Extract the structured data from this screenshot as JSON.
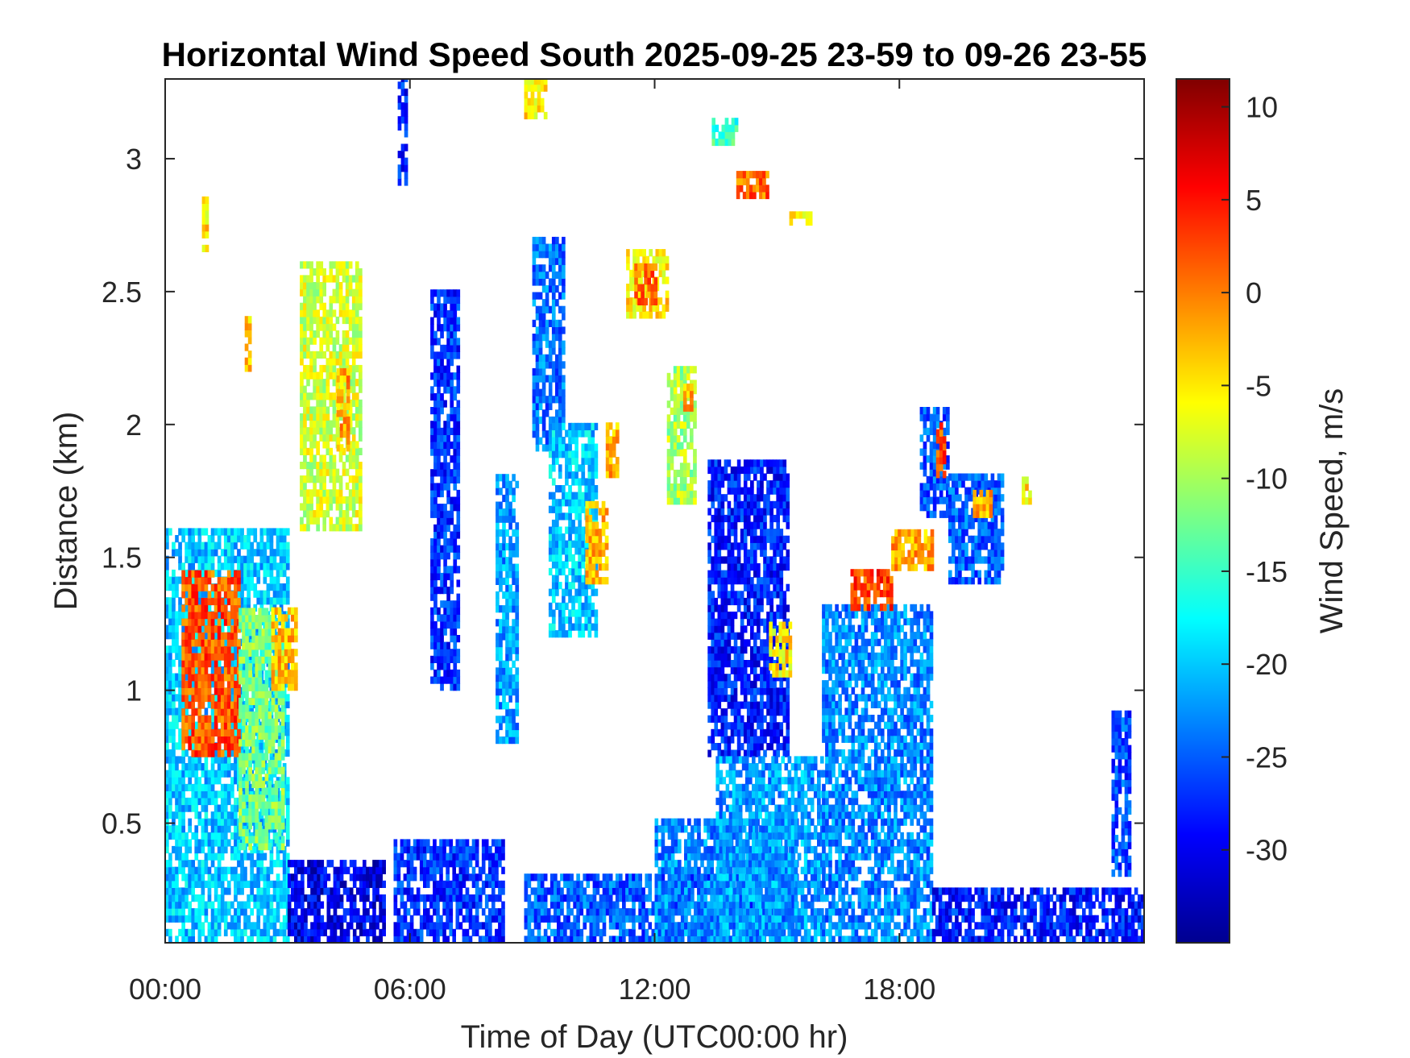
{
  "chart_data": {
    "type": "heatmap",
    "title": "Horizontal Wind Speed South 2025-09-25 23-59 to 09-26 23-55",
    "xlabel": "Time of Day (UTC00:00 hr)",
    "ylabel": "Distance (km)",
    "xlim": [
      0,
      24
    ],
    "ylim": [
      0.05,
      3.3
    ],
    "x_ticks": [
      0,
      6,
      12,
      18
    ],
    "x_tick_labels": [
      "00:00",
      "06:00",
      "12:00",
      "18:00"
    ],
    "y_ticks": [
      0.5,
      1,
      1.5,
      2,
      2.5,
      3
    ],
    "y_tick_labels": [
      "0.5",
      "1",
      "1.5",
      "2",
      "2.5",
      "3"
    ],
    "colorbar": {
      "label": "Wind Speed, m/s",
      "colormap": "jet",
      "range": [
        -35,
        11.5
      ],
      "ticks": [
        10,
        5,
        0,
        -5,
        -10,
        -15,
        -20,
        -25,
        -30
      ],
      "tick_labels": [
        "10",
        "5",
        "0",
        "-5",
        "-10",
        "-15",
        "-20",
        "-25",
        "-30"
      ]
    },
    "regions": [
      {
        "x": [
          0.0,
          3.0
        ],
        "y": [
          0.05,
          1.6
        ],
        "value": -20
      },
      {
        "x": [
          0.4,
          1.8
        ],
        "y": [
          0.75,
          1.45
        ],
        "value": 2
      },
      {
        "x": [
          1.8,
          2.9
        ],
        "y": [
          0.4,
          1.3
        ],
        "value": -12
      },
      {
        "x": [
          2.6,
          3.2
        ],
        "y": [
          1.0,
          1.3
        ],
        "value": -3
      },
      {
        "x": [
          0.9,
          1.0
        ],
        "y": [
          2.65,
          2.85
        ],
        "value": -5
      },
      {
        "x": [
          1.95,
          2.05
        ],
        "y": [
          2.2,
          2.4
        ],
        "value": -3
      },
      {
        "x": [
          3.3,
          4.8
        ],
        "y": [
          1.6,
          2.6
        ],
        "value": -8
      },
      {
        "x": [
          4.2,
          4.5
        ],
        "y": [
          1.9,
          2.2
        ],
        "value": -2
      },
      {
        "x": [
          3.0,
          5.4
        ],
        "y": [
          0.05,
          0.35
        ],
        "value": -30
      },
      {
        "x": [
          5.6,
          8.3
        ],
        "y": [
          0.05,
          0.42
        ],
        "value": -27
      },
      {
        "x": [
          5.7,
          5.9
        ],
        "y": [
          2.9,
          3.3
        ],
        "value": -28
      },
      {
        "x": [
          6.5,
          7.2
        ],
        "y": [
          1.0,
          2.5
        ],
        "value": -27
      },
      {
        "x": [
          8.1,
          8.6
        ],
        "y": [
          0.8,
          1.8
        ],
        "value": -22
      },
      {
        "x": [
          8.8,
          9.3
        ],
        "y": [
          3.15,
          3.3
        ],
        "value": -5
      },
      {
        "x": [
          9.0,
          9.8
        ],
        "y": [
          1.9,
          2.7
        ],
        "value": -24
      },
      {
        "x": [
          9.4,
          10.6
        ],
        "y": [
          1.2,
          2.0
        ],
        "value": -20
      },
      {
        "x": [
          10.3,
          10.8
        ],
        "y": [
          1.4,
          1.7
        ],
        "value": -3
      },
      {
        "x": [
          10.8,
          11.1
        ],
        "y": [
          1.8,
          2.0
        ],
        "value": -2
      },
      {
        "x": [
          11.3,
          12.3
        ],
        "y": [
          2.4,
          2.65
        ],
        "value": -5
      },
      {
        "x": [
          11.5,
          12.0
        ],
        "y": [
          2.45,
          2.6
        ],
        "value": 1
      },
      {
        "x": [
          12.3,
          13.0
        ],
        "y": [
          1.7,
          2.2
        ],
        "value": -10
      },
      {
        "x": [
          12.7,
          12.9
        ],
        "y": [
          2.05,
          2.15
        ],
        "value": -2
      },
      {
        "x": [
          13.4,
          14.0
        ],
        "y": [
          3.05,
          3.15
        ],
        "value": -15
      },
      {
        "x": [
          14.0,
          14.8
        ],
        "y": [
          2.85,
          2.95
        ],
        "value": 1
      },
      {
        "x": [
          15.3,
          15.8
        ],
        "y": [
          2.75,
          2.8
        ],
        "value": -5
      },
      {
        "x": [
          13.3,
          15.3
        ],
        "y": [
          0.75,
          1.85
        ],
        "value": -28
      },
      {
        "x": [
          14.8,
          15.3
        ],
        "y": [
          1.05,
          1.25
        ],
        "value": -5
      },
      {
        "x": [
          8.8,
          15.0
        ],
        "y": [
          0.05,
          0.3
        ],
        "value": -25
      },
      {
        "x": [
          12.0,
          15.5
        ],
        "y": [
          0.05,
          0.5
        ],
        "value": -23
      },
      {
        "x": [
          13.5,
          16.1
        ],
        "y": [
          0.05,
          0.75
        ],
        "value": -22
      },
      {
        "x": [
          16.1,
          18.8
        ],
        "y": [
          0.05,
          1.3
        ],
        "value": -23
      },
      {
        "x": [
          16.8,
          17.8
        ],
        "y": [
          1.3,
          1.45
        ],
        "value": 3
      },
      {
        "x": [
          17.8,
          18.8
        ],
        "y": [
          1.45,
          1.6
        ],
        "value": -2
      },
      {
        "x": [
          18.5,
          19.2
        ],
        "y": [
          1.65,
          2.05
        ],
        "value": -25
      },
      {
        "x": [
          18.9,
          19.1
        ],
        "y": [
          1.8,
          2.0
        ],
        "value": 2
      },
      {
        "x": [
          19.2,
          20.5
        ],
        "y": [
          1.4,
          1.8
        ],
        "value": -25
      },
      {
        "x": [
          19.8,
          20.2
        ],
        "y": [
          1.65,
          1.75
        ],
        "value": -2
      },
      {
        "x": [
          21.0,
          21.2
        ],
        "y": [
          1.7,
          1.8
        ],
        "value": -5
      },
      {
        "x": [
          18.8,
          24.0
        ],
        "y": [
          0.05,
          0.25
        ],
        "value": -28
      },
      {
        "x": [
          23.2,
          23.6
        ],
        "y": [
          0.3,
          0.9
        ],
        "value": -26
      }
    ]
  }
}
